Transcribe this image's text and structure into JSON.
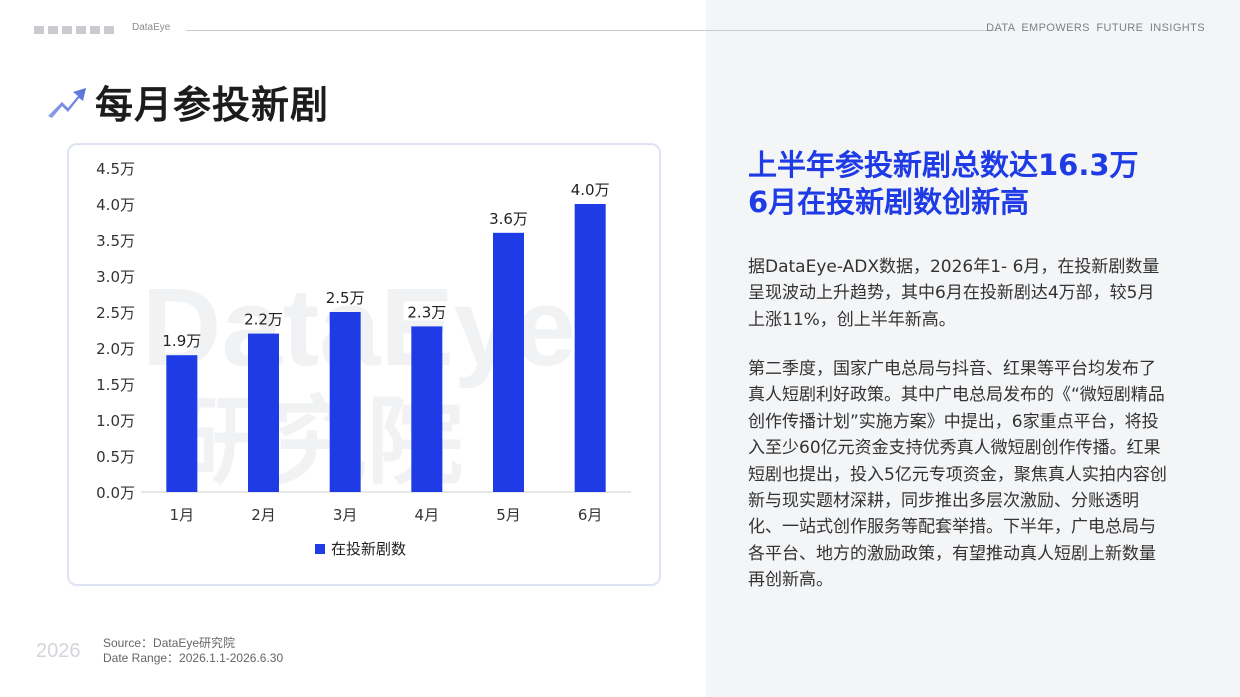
{
  "header": {
    "brand": "DataEye",
    "tagline": "DATA EMPOWERS FUTURE INSIGHTS"
  },
  "title": "每月参投新剧",
  "icons": {
    "title_icon": "trend-arrow-icon"
  },
  "colors": {
    "accent": "#1f3be6",
    "bar": "#1f3be6",
    "panel_bg": "#f4f5f7"
  },
  "chart_data": {
    "type": "bar",
    "categories": [
      "1月",
      "2月",
      "3月",
      "4月",
      "5月",
      "6月"
    ],
    "series": [
      {
        "name": "在投新剧数",
        "values": [
          1.9,
          2.2,
          2.5,
          2.3,
          3.6,
          4.0
        ]
      }
    ],
    "data_labels": [
      "1.9万",
      "2.2万",
      "2.5万",
      "2.3万",
      "3.6万",
      "4.0万"
    ],
    "y_ticks": [
      "0.0万",
      "0.5万",
      "1.0万",
      "1.5万",
      "2.0万",
      "2.5万",
      "3.0万",
      "3.5万",
      "4.0万",
      "4.5万"
    ],
    "ylim": [
      0,
      4.5
    ],
    "grid": false,
    "legend": "bottom-center",
    "watermark": [
      "DataEye",
      "研究院"
    ]
  },
  "headline": [
    "上半年参投新剧总数达16.3万",
    "6月在投新剧数创新高"
  ],
  "paragraphs": [
    "据DataEye-ADX数据，2026年1- 6月，在投新剧数量呈现波动上升趋势，其中6月在投新剧达4万部，较5月上涨11%，创上半年新高。",
    "第二季度，国家广电总局与抖音、红果等平台均发布了真人短剧利好政策。其中广电总局发布的《“微短剧精品创作传播计划”实施方案》中提出，6家重点平台，将投入至少60亿元资金支持优秀真人微短剧创作传播。红果短剧也提出，投入5亿元专项资金，聚焦真人实拍内容创新与现实题材深耕，同步推出多层次激励、分账透明化、一站式创作服务等配套举措。下半年，广电总局与各平台、地方的激励政策，有望推动真人短剧上新数量再创新高。"
  ],
  "footer": {
    "year": "2026",
    "source": "Source：DataEye研究院",
    "date_range": "Date Range：2026.1.1-2026.6.30"
  }
}
